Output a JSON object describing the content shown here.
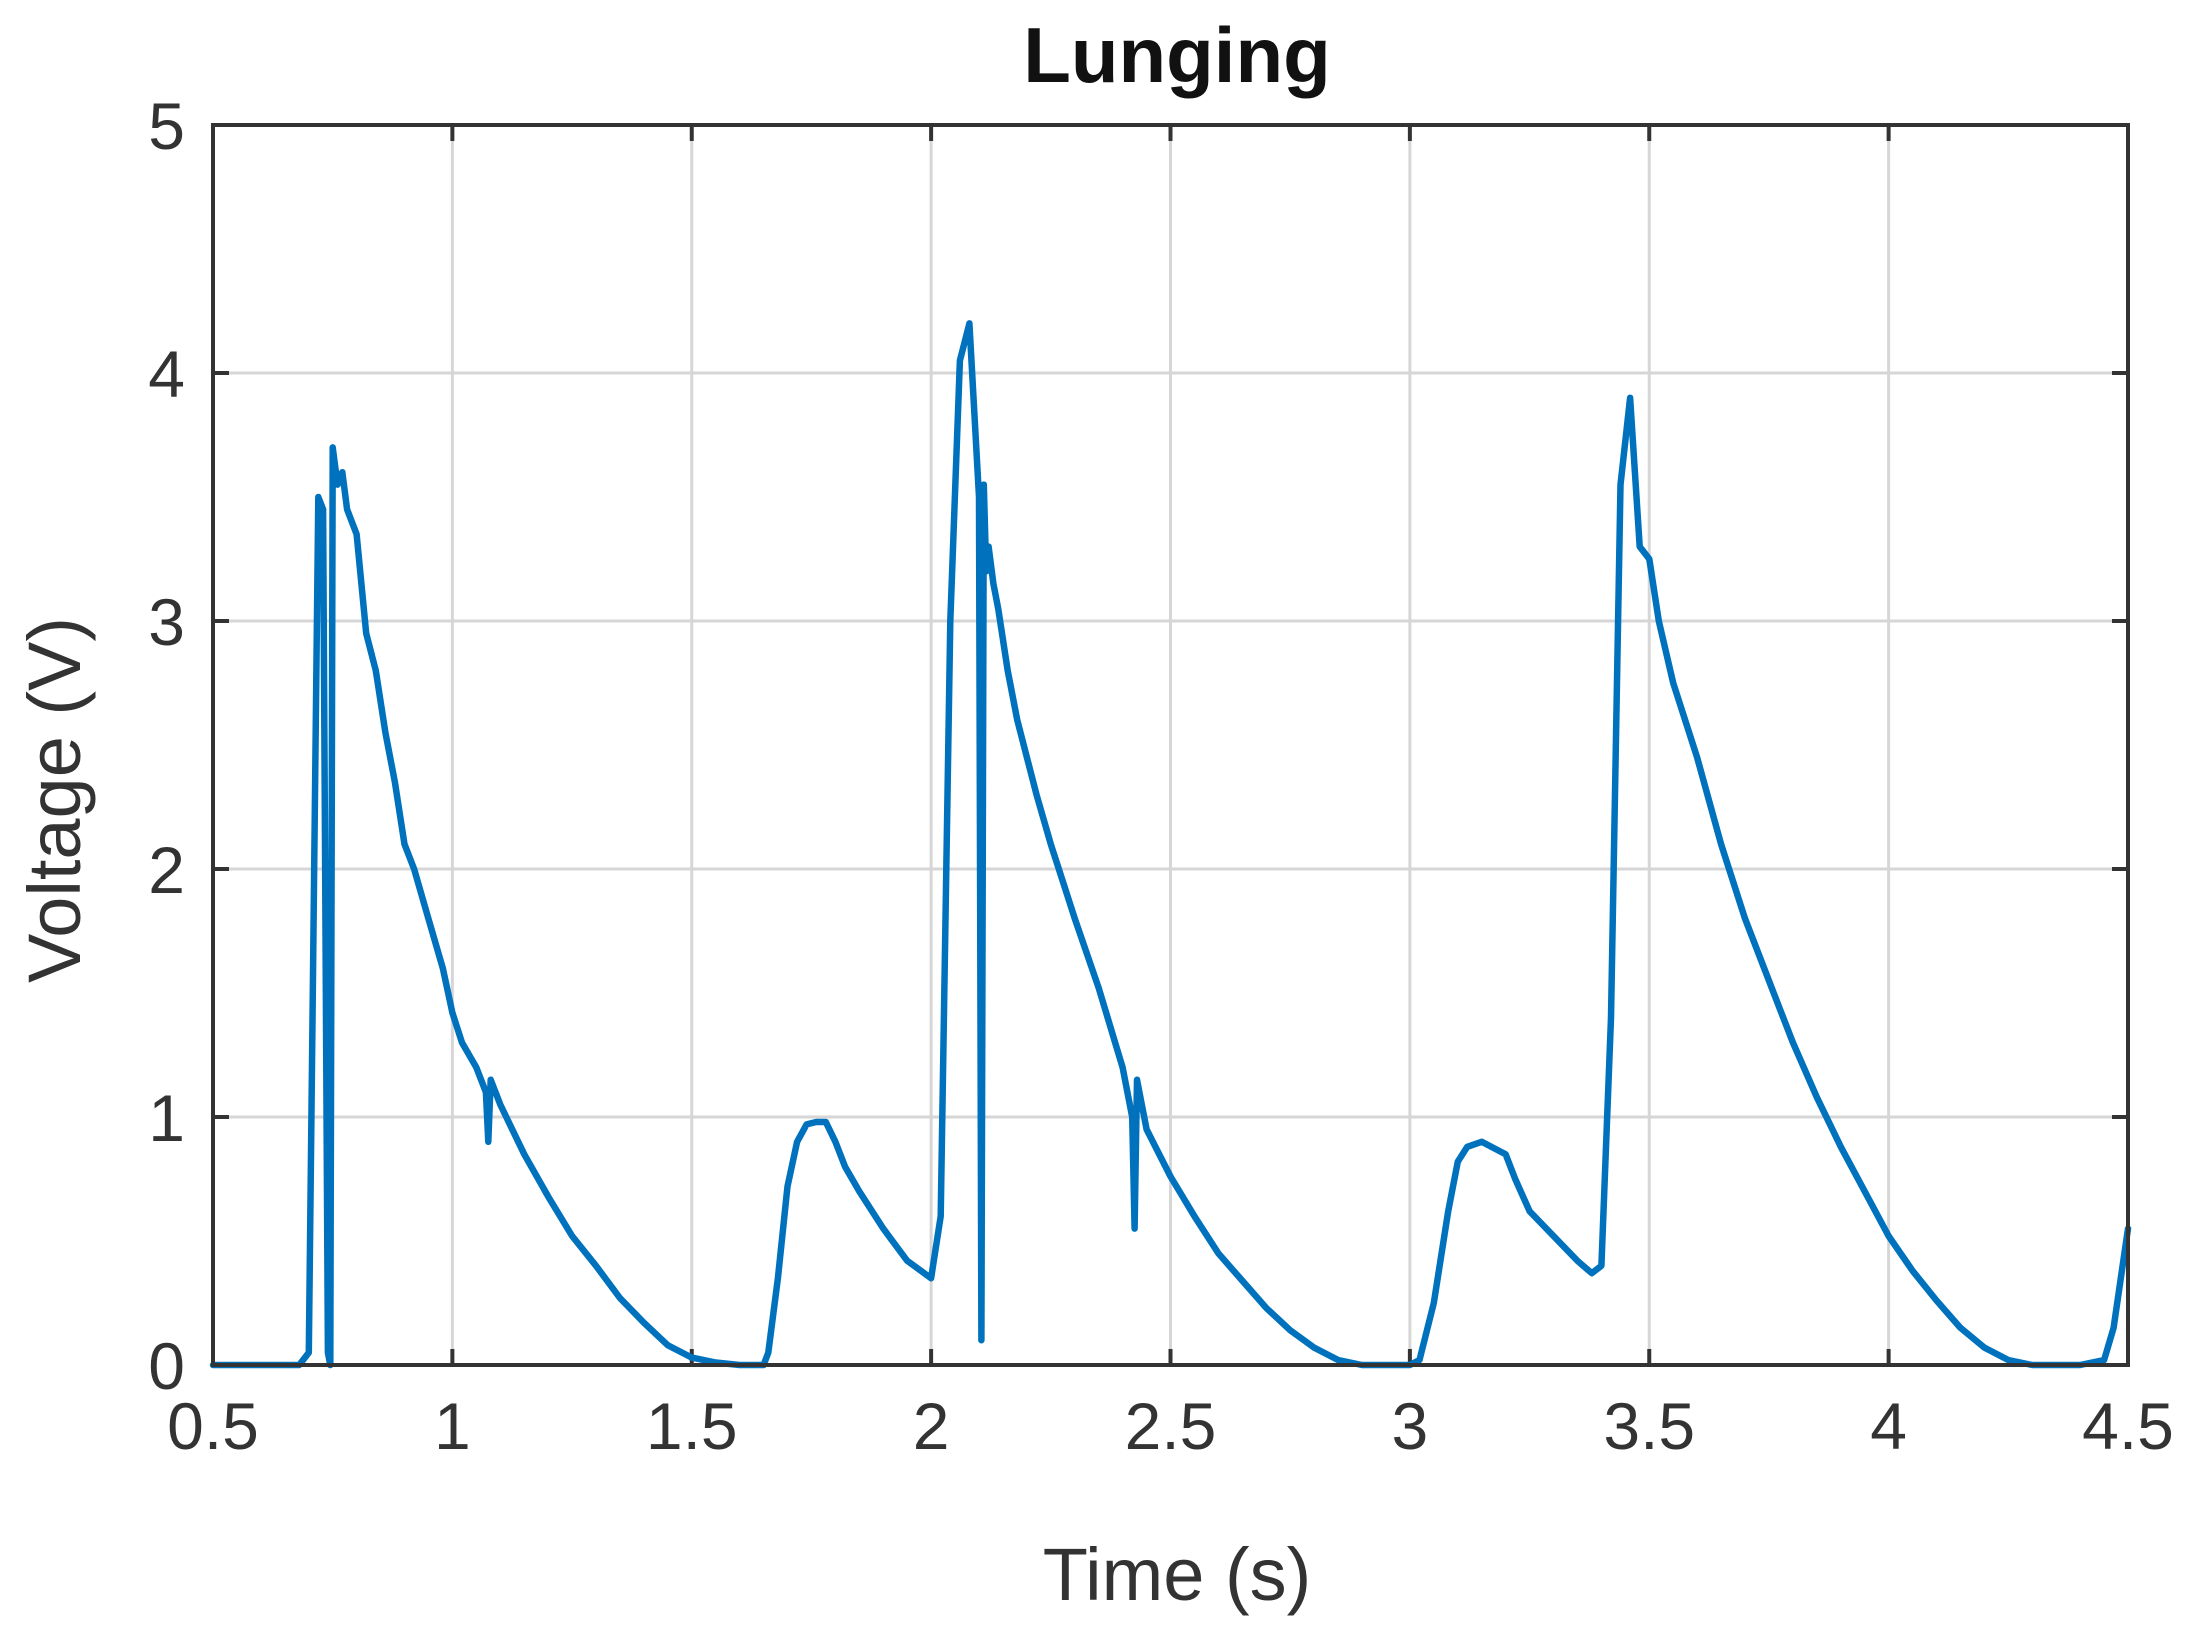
{
  "chart_data": {
    "type": "line",
    "title": "Lunging",
    "xlabel": "Time (s)",
    "ylabel": "Voltage (V)",
    "xlim": [
      0.5,
      4.5
    ],
    "ylim": [
      0,
      5
    ],
    "xticks": [
      "0.5",
      "1",
      "1.5",
      "2",
      "2.5",
      "3",
      "3.5",
      "4",
      "4.5"
    ],
    "yticks": [
      "0",
      "1",
      "2",
      "3",
      "4",
      "5"
    ],
    "grid": true,
    "color": "#0072BD",
    "series": [
      {
        "x": [
          0.5,
          0.68,
          0.7,
          0.72,
          0.73,
          0.74,
          0.745,
          0.75,
          0.76,
          0.77,
          0.78,
          0.8,
          0.82,
          0.84,
          0.86,
          0.88,
          0.9,
          0.92,
          0.95,
          0.98,
          1.0,
          1.02,
          1.05,
          1.07,
          1.075,
          1.08,
          1.1,
          1.15,
          1.2,
          1.25,
          1.3,
          1.35,
          1.4,
          1.45,
          1.5,
          1.55,
          1.6,
          1.65,
          1.66,
          1.68,
          1.7,
          1.72,
          1.74,
          1.76,
          1.78,
          1.8,
          1.82,
          1.85,
          1.9,
          1.95,
          2.0,
          2.02,
          2.04,
          2.06,
          2.08,
          2.1,
          2.105,
          2.11,
          2.115,
          2.12,
          2.13,
          2.14,
          2.16,
          2.18,
          2.2,
          2.22,
          2.25,
          2.28,
          2.3,
          2.35,
          2.4,
          2.42,
          2.425,
          2.43,
          2.45,
          2.5,
          2.55,
          2.6,
          2.65,
          2.7,
          2.75,
          2.8,
          2.85,
          2.9,
          2.95,
          3.0,
          3.02,
          3.05,
          3.08,
          3.1,
          3.12,
          3.15,
          3.2,
          3.22,
          3.25,
          3.3,
          3.35,
          3.38,
          3.4,
          3.42,
          3.44,
          3.46,
          3.47,
          3.48,
          3.5,
          3.52,
          3.55,
          3.6,
          3.65,
          3.7,
          3.75,
          3.8,
          3.85,
          3.9,
          3.95,
          4.0,
          4.05,
          4.1,
          4.15,
          4.2,
          4.25,
          4.3,
          4.35,
          4.4,
          4.45,
          4.47,
          4.5
        ],
        "y": [
          0,
          0,
          0.05,
          3.5,
          3.45,
          0.05,
          0,
          3.7,
          3.55,
          3.6,
          3.45,
          3.35,
          2.95,
          2.8,
          2.55,
          2.35,
          2.1,
          2.0,
          1.8,
          1.6,
          1.42,
          1.3,
          1.2,
          1.1,
          0.9,
          1.15,
          1.05,
          0.85,
          0.68,
          0.52,
          0.4,
          0.27,
          0.17,
          0.08,
          0.03,
          0.01,
          0,
          0,
          0.05,
          0.35,
          0.72,
          0.9,
          0.97,
          0.98,
          0.98,
          0.9,
          0.8,
          0.7,
          0.55,
          0.42,
          0.35,
          0.6,
          3.0,
          4.05,
          4.2,
          3.5,
          0.1,
          3.55,
          3.2,
          3.3,
          3.15,
          3.05,
          2.8,
          2.6,
          2.45,
          2.3,
          2.1,
          1.92,
          1.8,
          1.52,
          1.2,
          1.0,
          0.55,
          1.15,
          0.95,
          0.76,
          0.6,
          0.45,
          0.34,
          0.23,
          0.14,
          0.07,
          0.02,
          0,
          0,
          0,
          0.02,
          0.25,
          0.62,
          0.82,
          0.88,
          0.9,
          0.85,
          0.75,
          0.62,
          0.52,
          0.42,
          0.37,
          0.4,
          1.4,
          3.55,
          3.9,
          3.6,
          3.3,
          3.25,
          3.0,
          2.75,
          2.45,
          2.1,
          1.8,
          1.55,
          1.3,
          1.08,
          0.88,
          0.7,
          0.52,
          0.38,
          0.26,
          0.15,
          0.07,
          0.02,
          0,
          0,
          0,
          0.02,
          0.15,
          0.55
        ]
      }
    ]
  }
}
